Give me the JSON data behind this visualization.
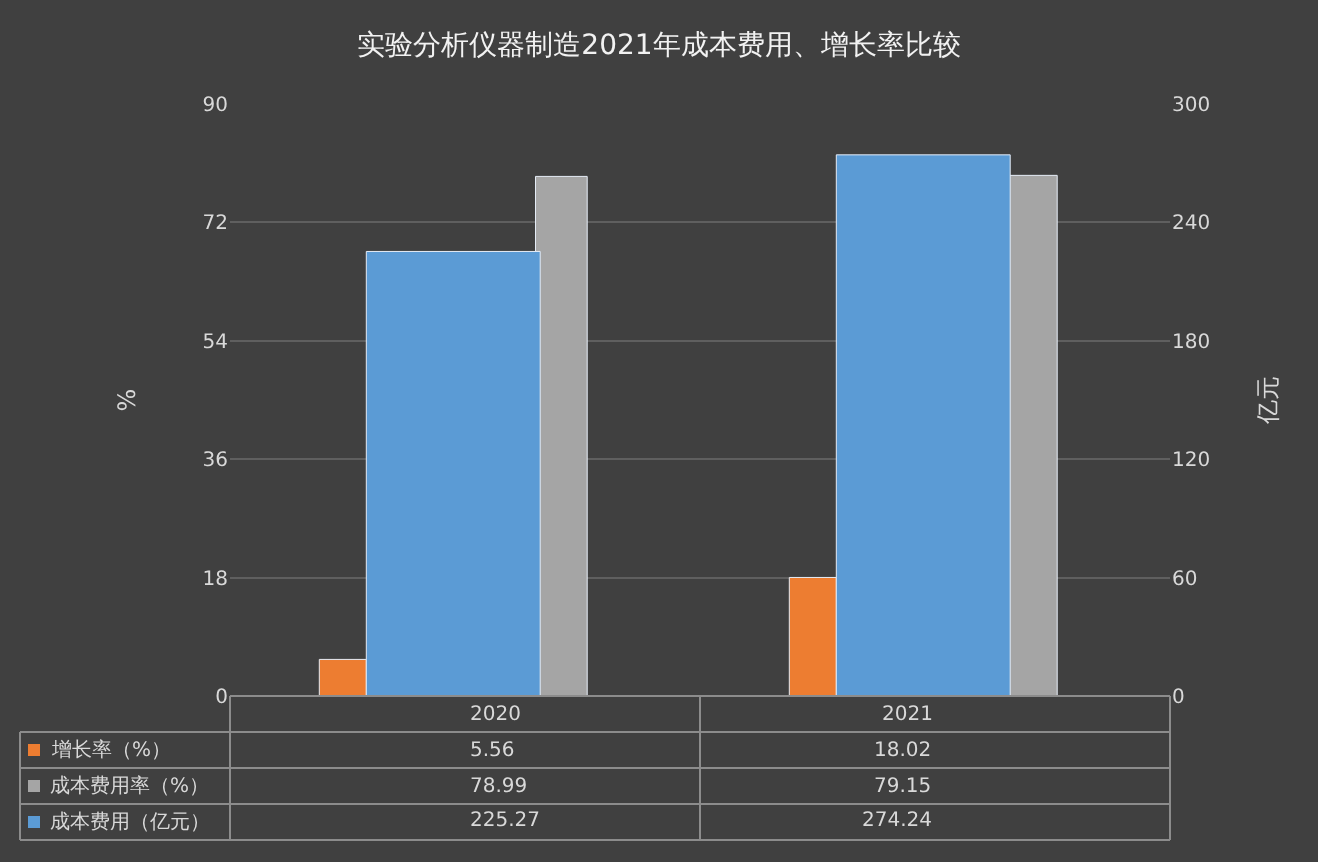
{
  "chart_data": {
    "type": "bar",
    "title": "实验分析仪器制造2021年成本费用、增长率比较",
    "categories": [
      "2020",
      "2021"
    ],
    "series": [
      {
        "name": "增长率（%）",
        "color": "#ed7d31",
        "values": [
          5.56,
          18.02
        ]
      },
      {
        "name": "成本费用率（%）",
        "color": "#a5a5a5",
        "values": [
          78.99,
          79.15
        ]
      },
      {
        "name": "成本费用（亿元）",
        "color": "#5b9bd5",
        "values": [
          225.27,
          274.24
        ],
        "axis": "y2"
      }
    ],
    "ylabel": "%",
    "y2label": "亿元",
    "ylim": [
      0,
      90
    ],
    "yticks": [
      0,
      18,
      36,
      54,
      72,
      90
    ],
    "y2lim": [
      0,
      300
    ],
    "y2ticks": [
      0,
      60,
      120,
      180,
      240,
      300
    ],
    "grid": "y",
    "legend": "bottom",
    "data_labels": true
  }
}
